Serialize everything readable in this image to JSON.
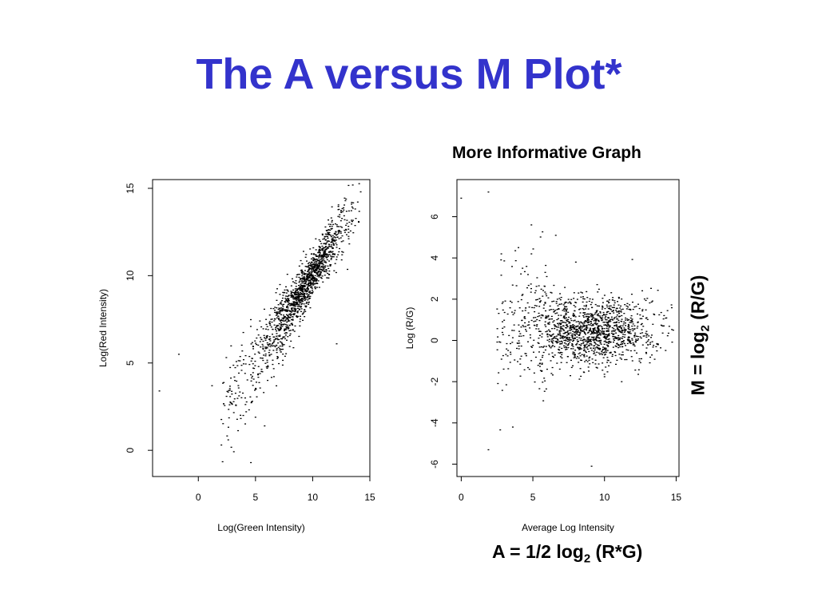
{
  "slide": {
    "title": "The A versus M Plot*",
    "right_caption": "More Informative Graph",
    "formula_a": {
      "prefix": "A = 1/2 log",
      "sub": "2",
      "suffix": " (R*G)"
    },
    "formula_m": {
      "prefix": "M = log",
      "sub": "2",
      "suffix": " (R/G)"
    }
  },
  "chart_data": [
    {
      "type": "scatter",
      "title": "",
      "xlabel": "Log(Green Intensity)",
      "ylabel": "Log(Red Intensity)",
      "xlim": [
        -4,
        15
      ],
      "ylim": [
        -1.5,
        15.5
      ],
      "xticks": [
        "0",
        "5",
        "10",
        "15"
      ],
      "yticks": [
        "0",
        "5",
        "10",
        "15"
      ],
      "grid": false,
      "legend": "none",
      "color": "#000000",
      "sample_points": [
        [
          -3.4,
          3.4
        ],
        [
          -1.7,
          5.5
        ],
        [
          4.6,
          -0.7
        ],
        [
          12.1,
          6.1
        ],
        [
          5.0,
          1.9
        ],
        [
          5.8,
          1.4
        ],
        [
          4.1,
          3.0
        ],
        [
          3.2,
          4.0
        ],
        [
          1.2,
          3.7
        ],
        [
          7.5,
          7.6
        ],
        [
          8.6,
          8.9
        ],
        [
          9.3,
          9.7
        ],
        [
          10.2,
          10.6
        ],
        [
          11.0,
          11.4
        ],
        [
          12.3,
          12.5
        ],
        [
          13.4,
          14.1
        ],
        [
          14.2,
          14.8
        ]
      ],
      "trend": {
        "slope": 1.03,
        "intercept": -0.2,
        "x_range": [
          0.5,
          14.5
        ]
      }
    },
    {
      "type": "scatter",
      "title": "",
      "xlabel": "Average Log Intensity",
      "ylabel": "Log (R/G)",
      "xlim": [
        -0.3,
        15.2
      ],
      "ylim": [
        -6.6,
        7.8
      ],
      "xticks": [
        "0",
        "5",
        "10",
        "15"
      ],
      "yticks": [
        "-6",
        "-4",
        "-2",
        "0",
        "2",
        "4",
        "6"
      ],
      "grid": false,
      "legend": "none",
      "color": "#000000",
      "sample_points": [
        [
          0.0,
          6.9
        ],
        [
          1.9,
          7.2
        ],
        [
          1.9,
          -5.3
        ],
        [
          6.6,
          5.1
        ],
        [
          9.1,
          -6.1
        ],
        [
          3.6,
          -4.2
        ],
        [
          2.8,
          4.2
        ],
        [
          4.9,
          4.2
        ],
        [
          8.0,
          3.8
        ],
        [
          8.6,
          0.9
        ],
        [
          10.3,
          0.3
        ],
        [
          12.0,
          0.8
        ],
        [
          14.1,
          0.7
        ],
        [
          14.8,
          0.5
        ],
        [
          11.2,
          -2.0
        ],
        [
          6.3,
          -1.6
        ]
      ],
      "trend": {
        "center_m": 0.5,
        "x_range": [
          2.5,
          14.8
        ]
      }
    }
  ]
}
